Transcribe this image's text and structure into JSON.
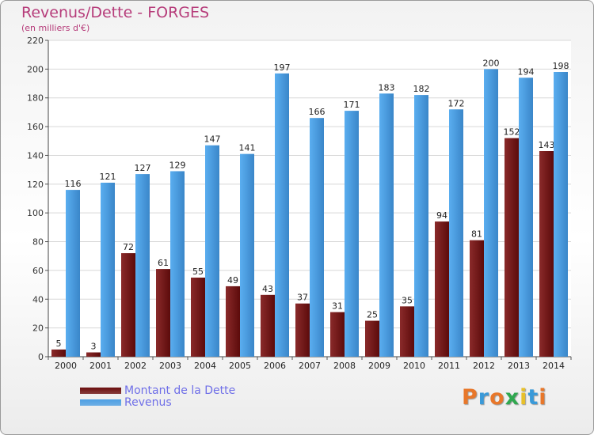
{
  "title": "Revenus/Dette - FORGES",
  "subtitle": "(en milliers d'€)",
  "colors": {
    "dette": "#7a1e1e",
    "revenus": "#4d9fe3",
    "title": "#b63c7a",
    "legend_text": "#6f6fe8"
  },
  "legend": [
    {
      "label": "Montant de la Dette",
      "color": "#6b0e0e"
    },
    {
      "label": "Revenus",
      "color": "#4d9fe3"
    }
  ],
  "logo": {
    "letters": [
      "P",
      "r",
      "o",
      "x",
      "i",
      "t",
      "i"
    ],
    "colors": [
      "#e8772a",
      "#3a9ad9",
      "#e8772a",
      "#2fa84f",
      "#e8c02a",
      "#3a9ad9",
      "#e8772a"
    ]
  },
  "chart_data": {
    "type": "bar",
    "categories": [
      "2000",
      "2001",
      "2002",
      "2003",
      "2004",
      "2005",
      "2006",
      "2007",
      "2008",
      "2009",
      "2010",
      "2011",
      "2012",
      "2013",
      "2014"
    ],
    "series": [
      {
        "name": "Montant de la Dette",
        "values": [
          5,
          3,
          72,
          61,
          55,
          49,
          43,
          37,
          31,
          25,
          35,
          94,
          81,
          152,
          143
        ]
      },
      {
        "name": "Revenus",
        "values": [
          116,
          121,
          127,
          129,
          147,
          141,
          197,
          166,
          171,
          183,
          182,
          172,
          200,
          194,
          198
        ]
      }
    ],
    "ylim": [
      0,
      220
    ],
    "yticks": [
      0,
      20,
      40,
      60,
      80,
      100,
      120,
      140,
      160,
      180,
      200,
      220
    ],
    "grid": true
  }
}
